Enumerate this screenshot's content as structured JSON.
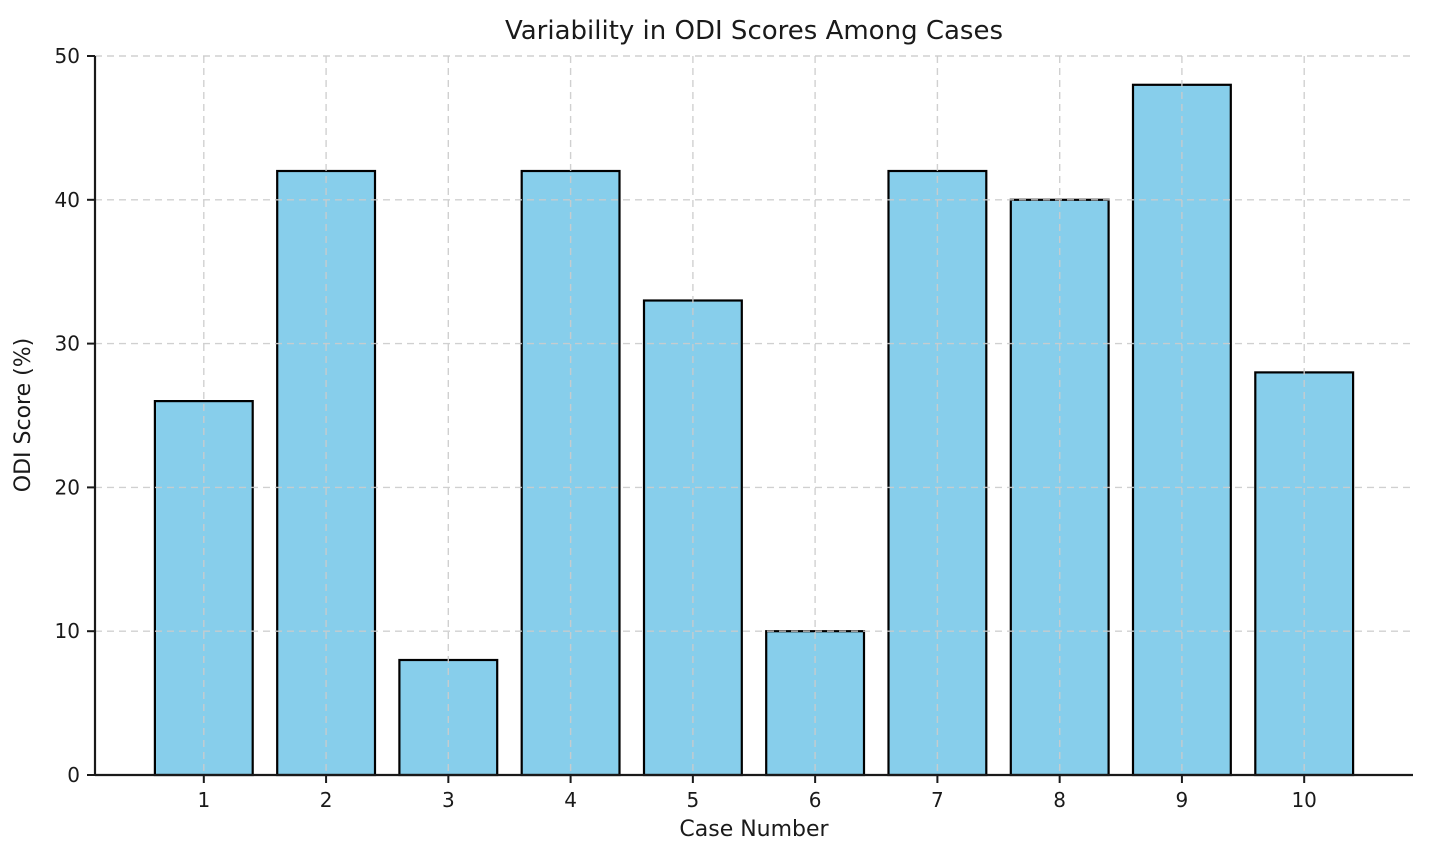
{
  "chart_data": {
    "type": "bar",
    "title": "Variability in ODI Scores Among Cases",
    "xlabel": "Case Number",
    "ylabel": "ODI Score (%)",
    "categories": [
      "1",
      "2",
      "3",
      "4",
      "5",
      "6",
      "7",
      "8",
      "9",
      "10"
    ],
    "values": [
      26,
      42,
      8,
      42,
      33,
      10,
      42,
      40,
      48,
      28
    ],
    "series": [
      {
        "name": "ODI Score",
        "values": [
          26,
          42,
          8,
          42,
          33,
          10,
          42,
          40,
          48,
          28
        ]
      }
    ],
    "ylim": [
      0,
      50
    ],
    "yticks": [
      0,
      10,
      20,
      30,
      40,
      50
    ],
    "grid": true,
    "grid_style": "dashed, drawn above bars",
    "legend": false,
    "colors": {
      "bar_fill": "#87CEEB",
      "bar_edge": "#000000",
      "grid": "#cccccc",
      "text": "#1a1a1a",
      "spine": "#1a1a1a",
      "background": "#ffffff"
    }
  }
}
